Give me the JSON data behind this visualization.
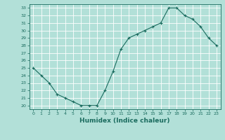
{
  "x": [
    0,
    1,
    2,
    3,
    4,
    5,
    6,
    7,
    8,
    9,
    10,
    11,
    12,
    13,
    14,
    15,
    16,
    17,
    18,
    19,
    20,
    21,
    22,
    23
  ],
  "y": [
    25.0,
    24.0,
    23.0,
    21.5,
    21.0,
    20.5,
    20.0,
    20.0,
    20.0,
    22.0,
    24.5,
    27.5,
    29.0,
    29.5,
    30.0,
    30.5,
    31.0,
    33.0,
    33.0,
    32.0,
    31.5,
    30.5,
    29.0,
    28.0
  ],
  "line_color": "#1a6b5e",
  "marker": "+",
  "bg_color": "#b2e0d8",
  "grid_color": "#ffffff",
  "xlabel": "Humidex (Indice chaleur)",
  "ylabel_ticks": [
    20,
    21,
    22,
    23,
    24,
    25,
    26,
    27,
    28,
    29,
    30,
    31,
    32,
    33
  ],
  "xlim": [
    -0.5,
    23.5
  ],
  "ylim": [
    19.5,
    33.5
  ]
}
